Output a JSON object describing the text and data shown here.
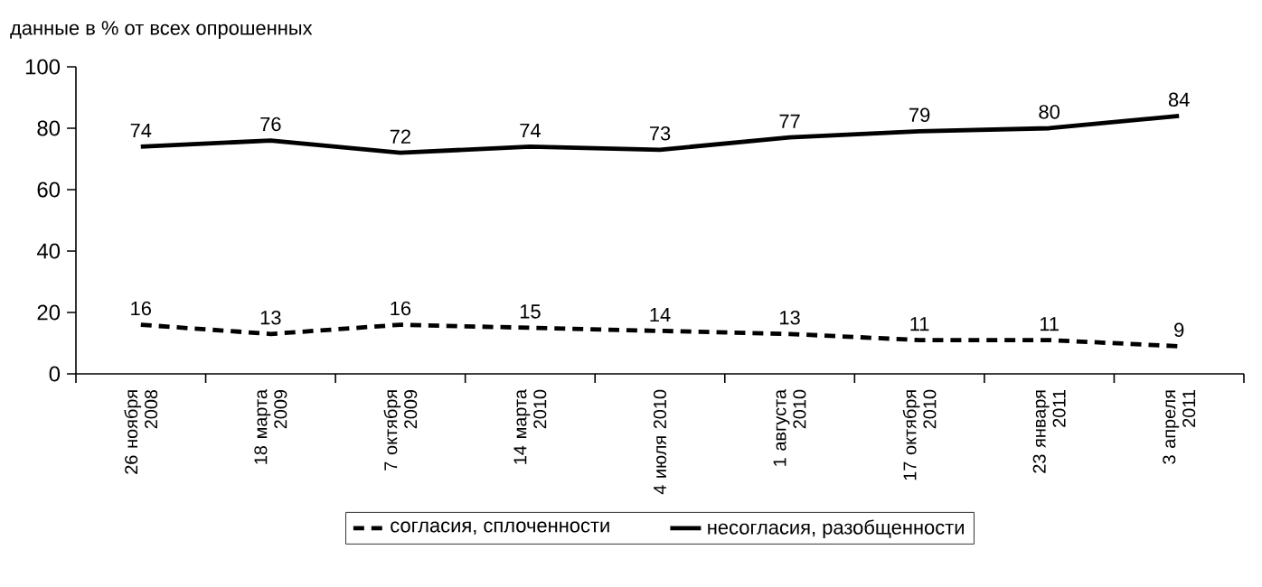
{
  "chart_data": {
    "type": "line",
    "title": "данные в % от всех опрошенных",
    "categories": [
      "26 ноября 2008",
      "18 марта 2009",
      "7 октября 2009",
      "14 марта 2010",
      "4 июля 2010",
      "1 августа 2010",
      "17 октября 2010",
      "23 января 2011",
      "3 апреля 2011"
    ],
    "series": [
      {
        "name": "согласия, сплоченности",
        "color": "#000000",
        "line_style": "dashed",
        "values": [
          16,
          13,
          16,
          15,
          14,
          13,
          11,
          11,
          9
        ]
      },
      {
        "name": "несогласия, разобщенности",
        "color": "#000000",
        "line_style": "solid",
        "values": [
          74,
          76,
          72,
          74,
          73,
          77,
          79,
          80,
          84
        ]
      }
    ],
    "ylim": [
      0,
      100
    ],
    "yticks": [
      0,
      20,
      40,
      60,
      80,
      100
    ],
    "grid": false,
    "legend": "bottom",
    "marker": "none",
    "data_labels": true
  }
}
